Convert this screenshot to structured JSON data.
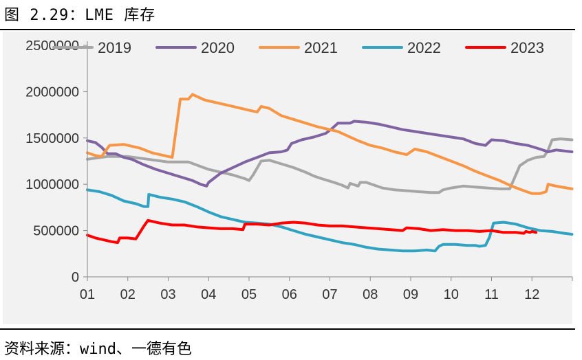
{
  "title": "图 2.29：LME 库存",
  "source": "资料来源：wind、一德有色",
  "chart_data": {
    "type": "line",
    "title": "LME 库存",
    "xlabel": "",
    "ylabel": "",
    "ylim": [
      0,
      2500000
    ],
    "yticks": [
      0,
      500000,
      1000000,
      1500000,
      2000000,
      2500000
    ],
    "ytick_labels": [
      "0",
      "500000",
      "1000000",
      "1500000",
      "2000000",
      "2500000"
    ],
    "xlim": [
      0,
      12
    ],
    "xticks": [
      0,
      1,
      2,
      3,
      4,
      5,
      6,
      7,
      8,
      9,
      10,
      11
    ],
    "xtick_labels": [
      "01",
      "02",
      "03",
      "04",
      "05",
      "06",
      "07",
      "08",
      "09",
      "10",
      "11",
      "12"
    ],
    "grid": false,
    "legend_position": "top",
    "series": [
      {
        "name": "2019",
        "color": "#a6a6a6",
        "points": [
          [
            0,
            1270000
          ],
          [
            0.5,
            1300000
          ],
          [
            1.0,
            1300000
          ],
          [
            1.5,
            1270000
          ],
          [
            2.0,
            1240000
          ],
          [
            2.5,
            1240000
          ],
          [
            3.0,
            1160000
          ],
          [
            3.3,
            1130000
          ],
          [
            3.6,
            1100000
          ],
          [
            3.9,
            1060000
          ],
          [
            4.0,
            1040000
          ],
          [
            4.1,
            1100000
          ],
          [
            4.3,
            1250000
          ],
          [
            4.5,
            1260000
          ],
          [
            4.8,
            1220000
          ],
          [
            5.1,
            1180000
          ],
          [
            5.4,
            1130000
          ],
          [
            5.6,
            1090000
          ],
          [
            5.8,
            1060000
          ],
          [
            6.1,
            1020000
          ],
          [
            6.3,
            990000
          ],
          [
            6.45,
            960000
          ],
          [
            6.5,
            1010000
          ],
          [
            6.7,
            980000
          ],
          [
            6.75,
            1020000
          ],
          [
            6.9,
            1020000
          ],
          [
            7.1,
            990000
          ],
          [
            7.3,
            960000
          ],
          [
            7.6,
            940000
          ],
          [
            7.9,
            930000
          ],
          [
            8.2,
            920000
          ],
          [
            8.5,
            910000
          ],
          [
            8.7,
            910000
          ],
          [
            8.8,
            940000
          ],
          [
            9.0,
            960000
          ],
          [
            9.3,
            980000
          ],
          [
            9.6,
            970000
          ],
          [
            9.9,
            960000
          ],
          [
            10.2,
            950000
          ],
          [
            10.45,
            950000
          ],
          [
            10.55,
            1050000
          ],
          [
            10.7,
            1200000
          ],
          [
            10.9,
            1260000
          ],
          [
            11.1,
            1290000
          ],
          [
            11.3,
            1300000
          ],
          [
            11.4,
            1370000
          ],
          [
            11.5,
            1480000
          ],
          [
            11.7,
            1490000
          ],
          [
            11.99,
            1480000
          ]
        ]
      },
      {
        "name": "2020",
        "color": "#8064a2",
        "points": [
          [
            0,
            1470000
          ],
          [
            0.2,
            1450000
          ],
          [
            0.35,
            1400000
          ],
          [
            0.5,
            1330000
          ],
          [
            0.7,
            1330000
          ],
          [
            0.9,
            1290000
          ],
          [
            1.1,
            1270000
          ],
          [
            1.4,
            1210000
          ],
          [
            1.7,
            1160000
          ],
          [
            2.0,
            1120000
          ],
          [
            2.3,
            1080000
          ],
          [
            2.6,
            1040000
          ],
          [
            2.8,
            1000000
          ],
          [
            2.95,
            980000
          ],
          [
            3.0,
            1020000
          ],
          [
            3.3,
            1120000
          ],
          [
            3.6,
            1180000
          ],
          [
            3.9,
            1240000
          ],
          [
            4.2,
            1290000
          ],
          [
            4.5,
            1340000
          ],
          [
            4.8,
            1350000
          ],
          [
            4.95,
            1370000
          ],
          [
            5.05,
            1440000
          ],
          [
            5.3,
            1480000
          ],
          [
            5.6,
            1510000
          ],
          [
            5.9,
            1550000
          ],
          [
            6.05,
            1600000
          ],
          [
            6.2,
            1660000
          ],
          [
            6.5,
            1660000
          ],
          [
            6.6,
            1680000
          ],
          [
            6.9,
            1670000
          ],
          [
            7.2,
            1650000
          ],
          [
            7.5,
            1620000
          ],
          [
            7.8,
            1590000
          ],
          [
            8.1,
            1570000
          ],
          [
            8.4,
            1550000
          ],
          [
            8.7,
            1530000
          ],
          [
            9.0,
            1510000
          ],
          [
            9.3,
            1490000
          ],
          [
            9.6,
            1440000
          ],
          [
            9.85,
            1420000
          ],
          [
            10.0,
            1480000
          ],
          [
            10.3,
            1470000
          ],
          [
            10.6,
            1440000
          ],
          [
            10.9,
            1420000
          ],
          [
            11.2,
            1380000
          ],
          [
            11.4,
            1350000
          ],
          [
            11.6,
            1370000
          ],
          [
            11.8,
            1360000
          ],
          [
            11.99,
            1350000
          ]
        ]
      },
      {
        "name": "2021",
        "color": "#f79646",
        "points": [
          [
            0,
            1340000
          ],
          [
            0.2,
            1310000
          ],
          [
            0.35,
            1300000
          ],
          [
            0.55,
            1420000
          ],
          [
            0.9,
            1430000
          ],
          [
            1.3,
            1390000
          ],
          [
            1.6,
            1340000
          ],
          [
            1.9,
            1310000
          ],
          [
            2.1,
            1290000
          ],
          [
            2.3,
            1920000
          ],
          [
            2.5,
            1920000
          ],
          [
            2.6,
            1970000
          ],
          [
            2.9,
            1910000
          ],
          [
            3.2,
            1880000
          ],
          [
            3.5,
            1850000
          ],
          [
            3.8,
            1820000
          ],
          [
            4.0,
            1800000
          ],
          [
            4.2,
            1780000
          ],
          [
            4.3,
            1840000
          ],
          [
            4.5,
            1820000
          ],
          [
            4.8,
            1740000
          ],
          [
            5.1,
            1700000
          ],
          [
            5.4,
            1660000
          ],
          [
            5.7,
            1620000
          ],
          [
            6.0,
            1590000
          ],
          [
            6.2,
            1570000
          ],
          [
            6.4,
            1530000
          ],
          [
            6.7,
            1470000
          ],
          [
            7.0,
            1420000
          ],
          [
            7.3,
            1390000
          ],
          [
            7.6,
            1350000
          ],
          [
            7.9,
            1320000
          ],
          [
            8.1,
            1380000
          ],
          [
            8.4,
            1350000
          ],
          [
            8.7,
            1300000
          ],
          [
            9.0,
            1250000
          ],
          [
            9.3,
            1200000
          ],
          [
            9.6,
            1140000
          ],
          [
            9.9,
            1090000
          ],
          [
            10.2,
            1040000
          ],
          [
            10.5,
            980000
          ],
          [
            10.8,
            930000
          ],
          [
            11.0,
            900000
          ],
          [
            11.2,
            900000
          ],
          [
            11.35,
            920000
          ],
          [
            11.4,
            1000000
          ],
          [
            11.6,
            980000
          ],
          [
            11.99,
            950000
          ]
        ]
      },
      {
        "name": "2022",
        "color": "#31a2c1",
        "points": [
          [
            0,
            940000
          ],
          [
            0.3,
            920000
          ],
          [
            0.6,
            880000
          ],
          [
            0.9,
            820000
          ],
          [
            1.2,
            790000
          ],
          [
            1.4,
            760000
          ],
          [
            1.5,
            760000
          ],
          [
            1.52,
            890000
          ],
          [
            1.8,
            860000
          ],
          [
            2.1,
            840000
          ],
          [
            2.4,
            810000
          ],
          [
            2.7,
            760000
          ],
          [
            3.0,
            700000
          ],
          [
            3.3,
            650000
          ],
          [
            3.6,
            620000
          ],
          [
            3.9,
            590000
          ],
          [
            4.2,
            580000
          ],
          [
            4.5,
            570000
          ],
          [
            4.8,
            540000
          ],
          [
            5.1,
            500000
          ],
          [
            5.4,
            460000
          ],
          [
            5.7,
            430000
          ],
          [
            6.0,
            400000
          ],
          [
            6.3,
            370000
          ],
          [
            6.6,
            350000
          ],
          [
            6.9,
            320000
          ],
          [
            7.2,
            300000
          ],
          [
            7.5,
            290000
          ],
          [
            7.8,
            280000
          ],
          [
            8.1,
            280000
          ],
          [
            8.4,
            290000
          ],
          [
            8.6,
            280000
          ],
          [
            8.7,
            330000
          ],
          [
            8.8,
            350000
          ],
          [
            9.1,
            350000
          ],
          [
            9.4,
            340000
          ],
          [
            9.6,
            340000
          ],
          [
            9.7,
            330000
          ],
          [
            9.85,
            340000
          ],
          [
            9.95,
            430000
          ],
          [
            10.05,
            580000
          ],
          [
            10.3,
            590000
          ],
          [
            10.6,
            570000
          ],
          [
            10.9,
            530000
          ],
          [
            11.2,
            500000
          ],
          [
            11.5,
            490000
          ],
          [
            11.8,
            470000
          ],
          [
            11.99,
            460000
          ]
        ]
      },
      {
        "name": "2023",
        "color": "#ff0000",
        "points": [
          [
            0,
            450000
          ],
          [
            0.2,
            420000
          ],
          [
            0.4,
            400000
          ],
          [
            0.6,
            380000
          ],
          [
            0.75,
            370000
          ],
          [
            0.8,
            420000
          ],
          [
            1.0,
            420000
          ],
          [
            1.2,
            410000
          ],
          [
            1.3,
            480000
          ],
          [
            1.4,
            550000
          ],
          [
            1.5,
            610000
          ],
          [
            1.8,
            580000
          ],
          [
            2.1,
            560000
          ],
          [
            2.4,
            560000
          ],
          [
            2.7,
            540000
          ],
          [
            3.0,
            530000
          ],
          [
            3.3,
            520000
          ],
          [
            3.6,
            520000
          ],
          [
            3.85,
            510000
          ],
          [
            3.9,
            570000
          ],
          [
            4.2,
            570000
          ],
          [
            4.5,
            560000
          ],
          [
            4.8,
            580000
          ],
          [
            5.1,
            590000
          ],
          [
            5.4,
            580000
          ],
          [
            5.7,
            560000
          ],
          [
            6.0,
            550000
          ],
          [
            6.3,
            550000
          ],
          [
            6.6,
            540000
          ],
          [
            6.9,
            530000
          ],
          [
            7.2,
            520000
          ],
          [
            7.5,
            510000
          ],
          [
            7.8,
            500000
          ],
          [
            7.9,
            530000
          ],
          [
            8.2,
            520000
          ],
          [
            8.5,
            500000
          ],
          [
            8.8,
            510000
          ],
          [
            9.1,
            500000
          ],
          [
            9.4,
            500000
          ],
          [
            9.7,
            490000
          ],
          [
            10.0,
            500000
          ],
          [
            10.3,
            480000
          ],
          [
            10.6,
            480000
          ],
          [
            10.8,
            470000
          ],
          [
            10.85,
            490000
          ],
          [
            10.95,
            480000
          ],
          [
            11.0,
            490000
          ],
          [
            11.1,
            480000
          ]
        ]
      }
    ]
  }
}
